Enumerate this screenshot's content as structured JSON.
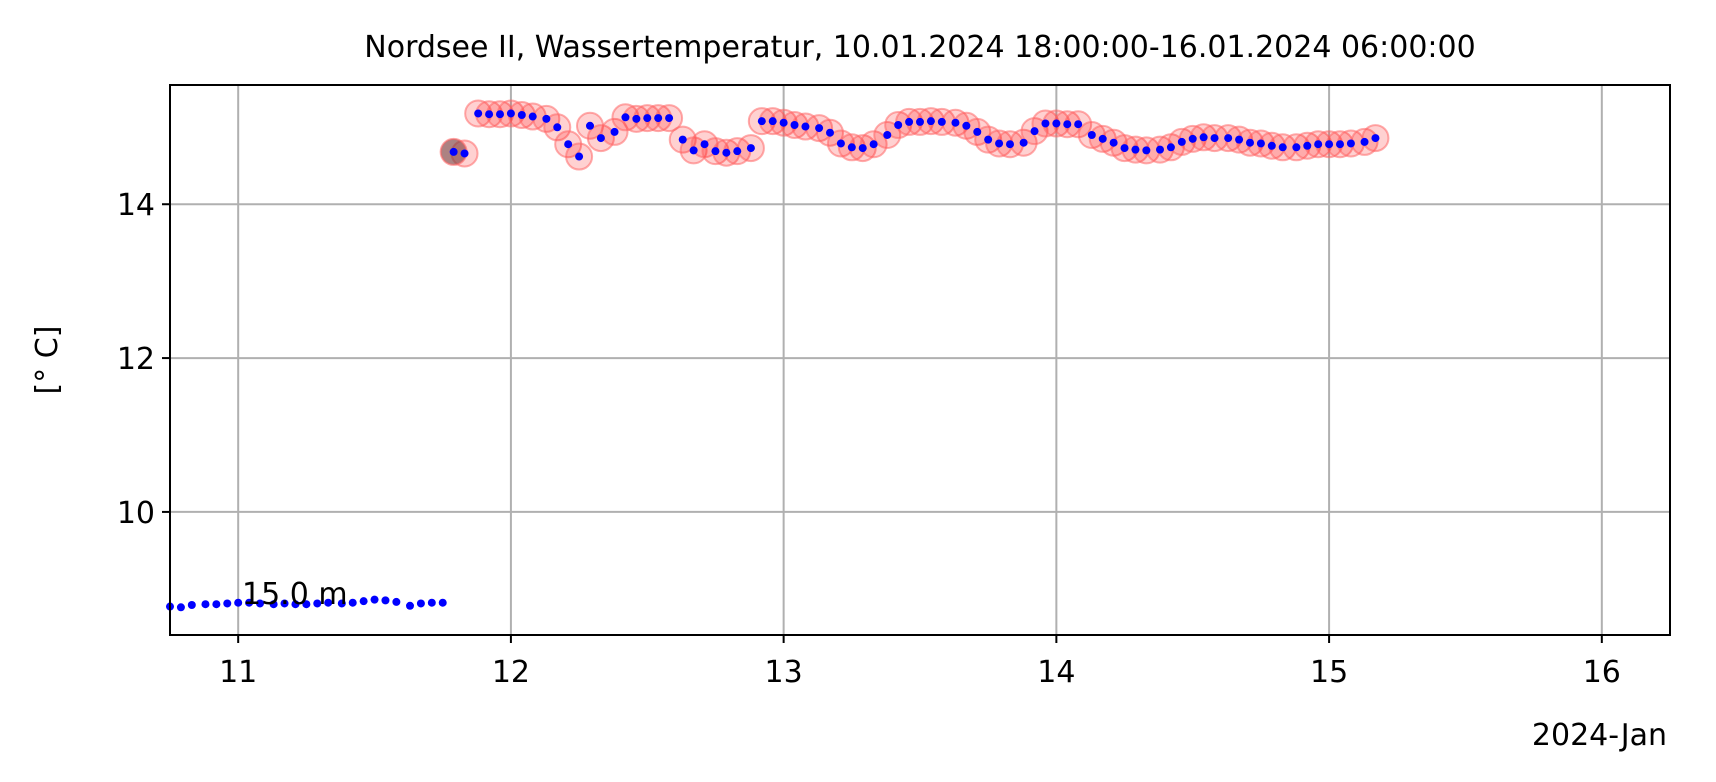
{
  "chart_data": {
    "type": "scatter",
    "title": "Nordsee II, Wassertemperatur, 10.01.2024 18:00:00-16.01.2024 06:00:00",
    "xlabel": "",
    "ylabel": "[° C]",
    "x_offset_label": "2024-Jan",
    "x_unit": "day of January 2024",
    "xlim": [
      10.75,
      16.25
    ],
    "ylim": [
      8.4,
      15.55
    ],
    "x_ticks": [
      11,
      12,
      13,
      14,
      15,
      16
    ],
    "x_tick_labels": [
      "11",
      "12",
      "13",
      "14",
      "15",
      "16"
    ],
    "y_ticks": [
      10,
      12,
      14
    ],
    "y_tick_labels": [
      "10",
      "12",
      "14"
    ],
    "grid": true,
    "annotation": "15.0 m",
    "colors": {
      "points": "#0000ff",
      "flag_fill": "#ff0000",
      "flag_edge": "#ff6666",
      "highlight": "#7f3f3f",
      "grid": "#b0b0b0",
      "axes": "#000000"
    },
    "series": [
      {
        "values": [
          [
            10.75,
            8.77
          ],
          [
            10.79,
            8.76
          ],
          [
            10.83,
            8.79
          ],
          [
            10.88,
            8.8
          ],
          [
            10.92,
            8.8
          ],
          [
            10.96,
            8.81
          ],
          [
            11.0,
            8.82
          ],
          [
            11.04,
            8.82
          ],
          [
            11.08,
            8.81
          ],
          [
            11.13,
            8.8
          ],
          [
            11.17,
            8.81
          ],
          [
            11.21,
            8.8
          ],
          [
            11.25,
            8.8
          ],
          [
            11.29,
            8.81
          ],
          [
            11.33,
            8.82
          ],
          [
            11.38,
            8.81
          ],
          [
            11.42,
            8.82
          ],
          [
            11.46,
            8.84
          ],
          [
            11.5,
            8.86
          ],
          [
            11.54,
            8.85
          ],
          [
            11.58,
            8.83
          ],
          [
            11.63,
            8.78
          ],
          [
            11.67,
            8.81
          ],
          [
            11.71,
            8.82
          ],
          [
            11.75,
            8.82
          ],
          [
            11.79,
            14.68
          ],
          [
            11.83,
            14.66
          ],
          [
            11.88,
            15.18
          ],
          [
            11.92,
            15.17
          ],
          [
            11.96,
            15.17
          ],
          [
            12.0,
            15.18
          ],
          [
            12.04,
            15.16
          ],
          [
            12.08,
            15.14
          ],
          [
            12.13,
            15.11
          ],
          [
            12.17,
            15.0
          ],
          [
            12.21,
            14.78
          ],
          [
            12.25,
            14.62
          ],
          [
            12.29,
            15.02
          ],
          [
            12.33,
            14.86
          ],
          [
            12.38,
            14.94
          ],
          [
            12.42,
            15.13
          ],
          [
            12.46,
            15.11
          ],
          [
            12.5,
            15.12
          ],
          [
            12.54,
            15.12
          ],
          [
            12.58,
            15.12
          ],
          [
            12.63,
            14.84
          ],
          [
            12.67,
            14.7
          ],
          [
            12.71,
            14.78
          ],
          [
            12.75,
            14.69
          ],
          [
            12.79,
            14.67
          ],
          [
            12.83,
            14.69
          ],
          [
            12.88,
            14.73
          ],
          [
            12.92,
            15.08
          ],
          [
            12.96,
            15.08
          ],
          [
            13.0,
            15.06
          ],
          [
            13.04,
            15.03
          ],
          [
            13.08,
            15.01
          ],
          [
            13.13,
            14.99
          ],
          [
            13.17,
            14.93
          ],
          [
            13.21,
            14.79
          ],
          [
            13.25,
            14.74
          ],
          [
            13.29,
            14.73
          ],
          [
            13.33,
            14.78
          ],
          [
            13.38,
            14.9
          ],
          [
            13.42,
            15.03
          ],
          [
            13.46,
            15.07
          ],
          [
            13.5,
            15.07
          ],
          [
            13.54,
            15.08
          ],
          [
            13.58,
            15.07
          ],
          [
            13.63,
            15.06
          ],
          [
            13.67,
            15.02
          ],
          [
            13.71,
            14.94
          ],
          [
            13.75,
            14.84
          ],
          [
            13.79,
            14.79
          ],
          [
            13.83,
            14.78
          ],
          [
            13.88,
            14.8
          ],
          [
            13.92,
            14.95
          ],
          [
            13.96,
            15.05
          ],
          [
            14.0,
            15.05
          ],
          [
            14.04,
            15.04
          ],
          [
            14.08,
            15.04
          ],
          [
            14.13,
            14.9
          ],
          [
            14.17,
            14.85
          ],
          [
            14.21,
            14.8
          ],
          [
            14.25,
            14.73
          ],
          [
            14.29,
            14.71
          ],
          [
            14.33,
            14.7
          ],
          [
            14.38,
            14.71
          ],
          [
            14.42,
            14.74
          ],
          [
            14.46,
            14.81
          ],
          [
            14.5,
            14.85
          ],
          [
            14.54,
            14.87
          ],
          [
            14.58,
            14.86
          ],
          [
            14.63,
            14.86
          ],
          [
            14.67,
            14.84
          ],
          [
            14.71,
            14.8
          ],
          [
            14.75,
            14.79
          ],
          [
            14.79,
            14.76
          ],
          [
            14.83,
            14.74
          ],
          [
            14.88,
            14.74
          ],
          [
            14.92,
            14.76
          ],
          [
            14.96,
            14.78
          ],
          [
            15.0,
            14.78
          ],
          [
            15.04,
            14.78
          ],
          [
            15.08,
            14.79
          ],
          [
            15.13,
            14.81
          ],
          [
            15.17,
            14.86
          ]
        ]
      }
    ],
    "flag_range_x": [
      11.83,
      15.17
    ],
    "highlight_point": [
      11.79,
      14.68
    ]
  }
}
